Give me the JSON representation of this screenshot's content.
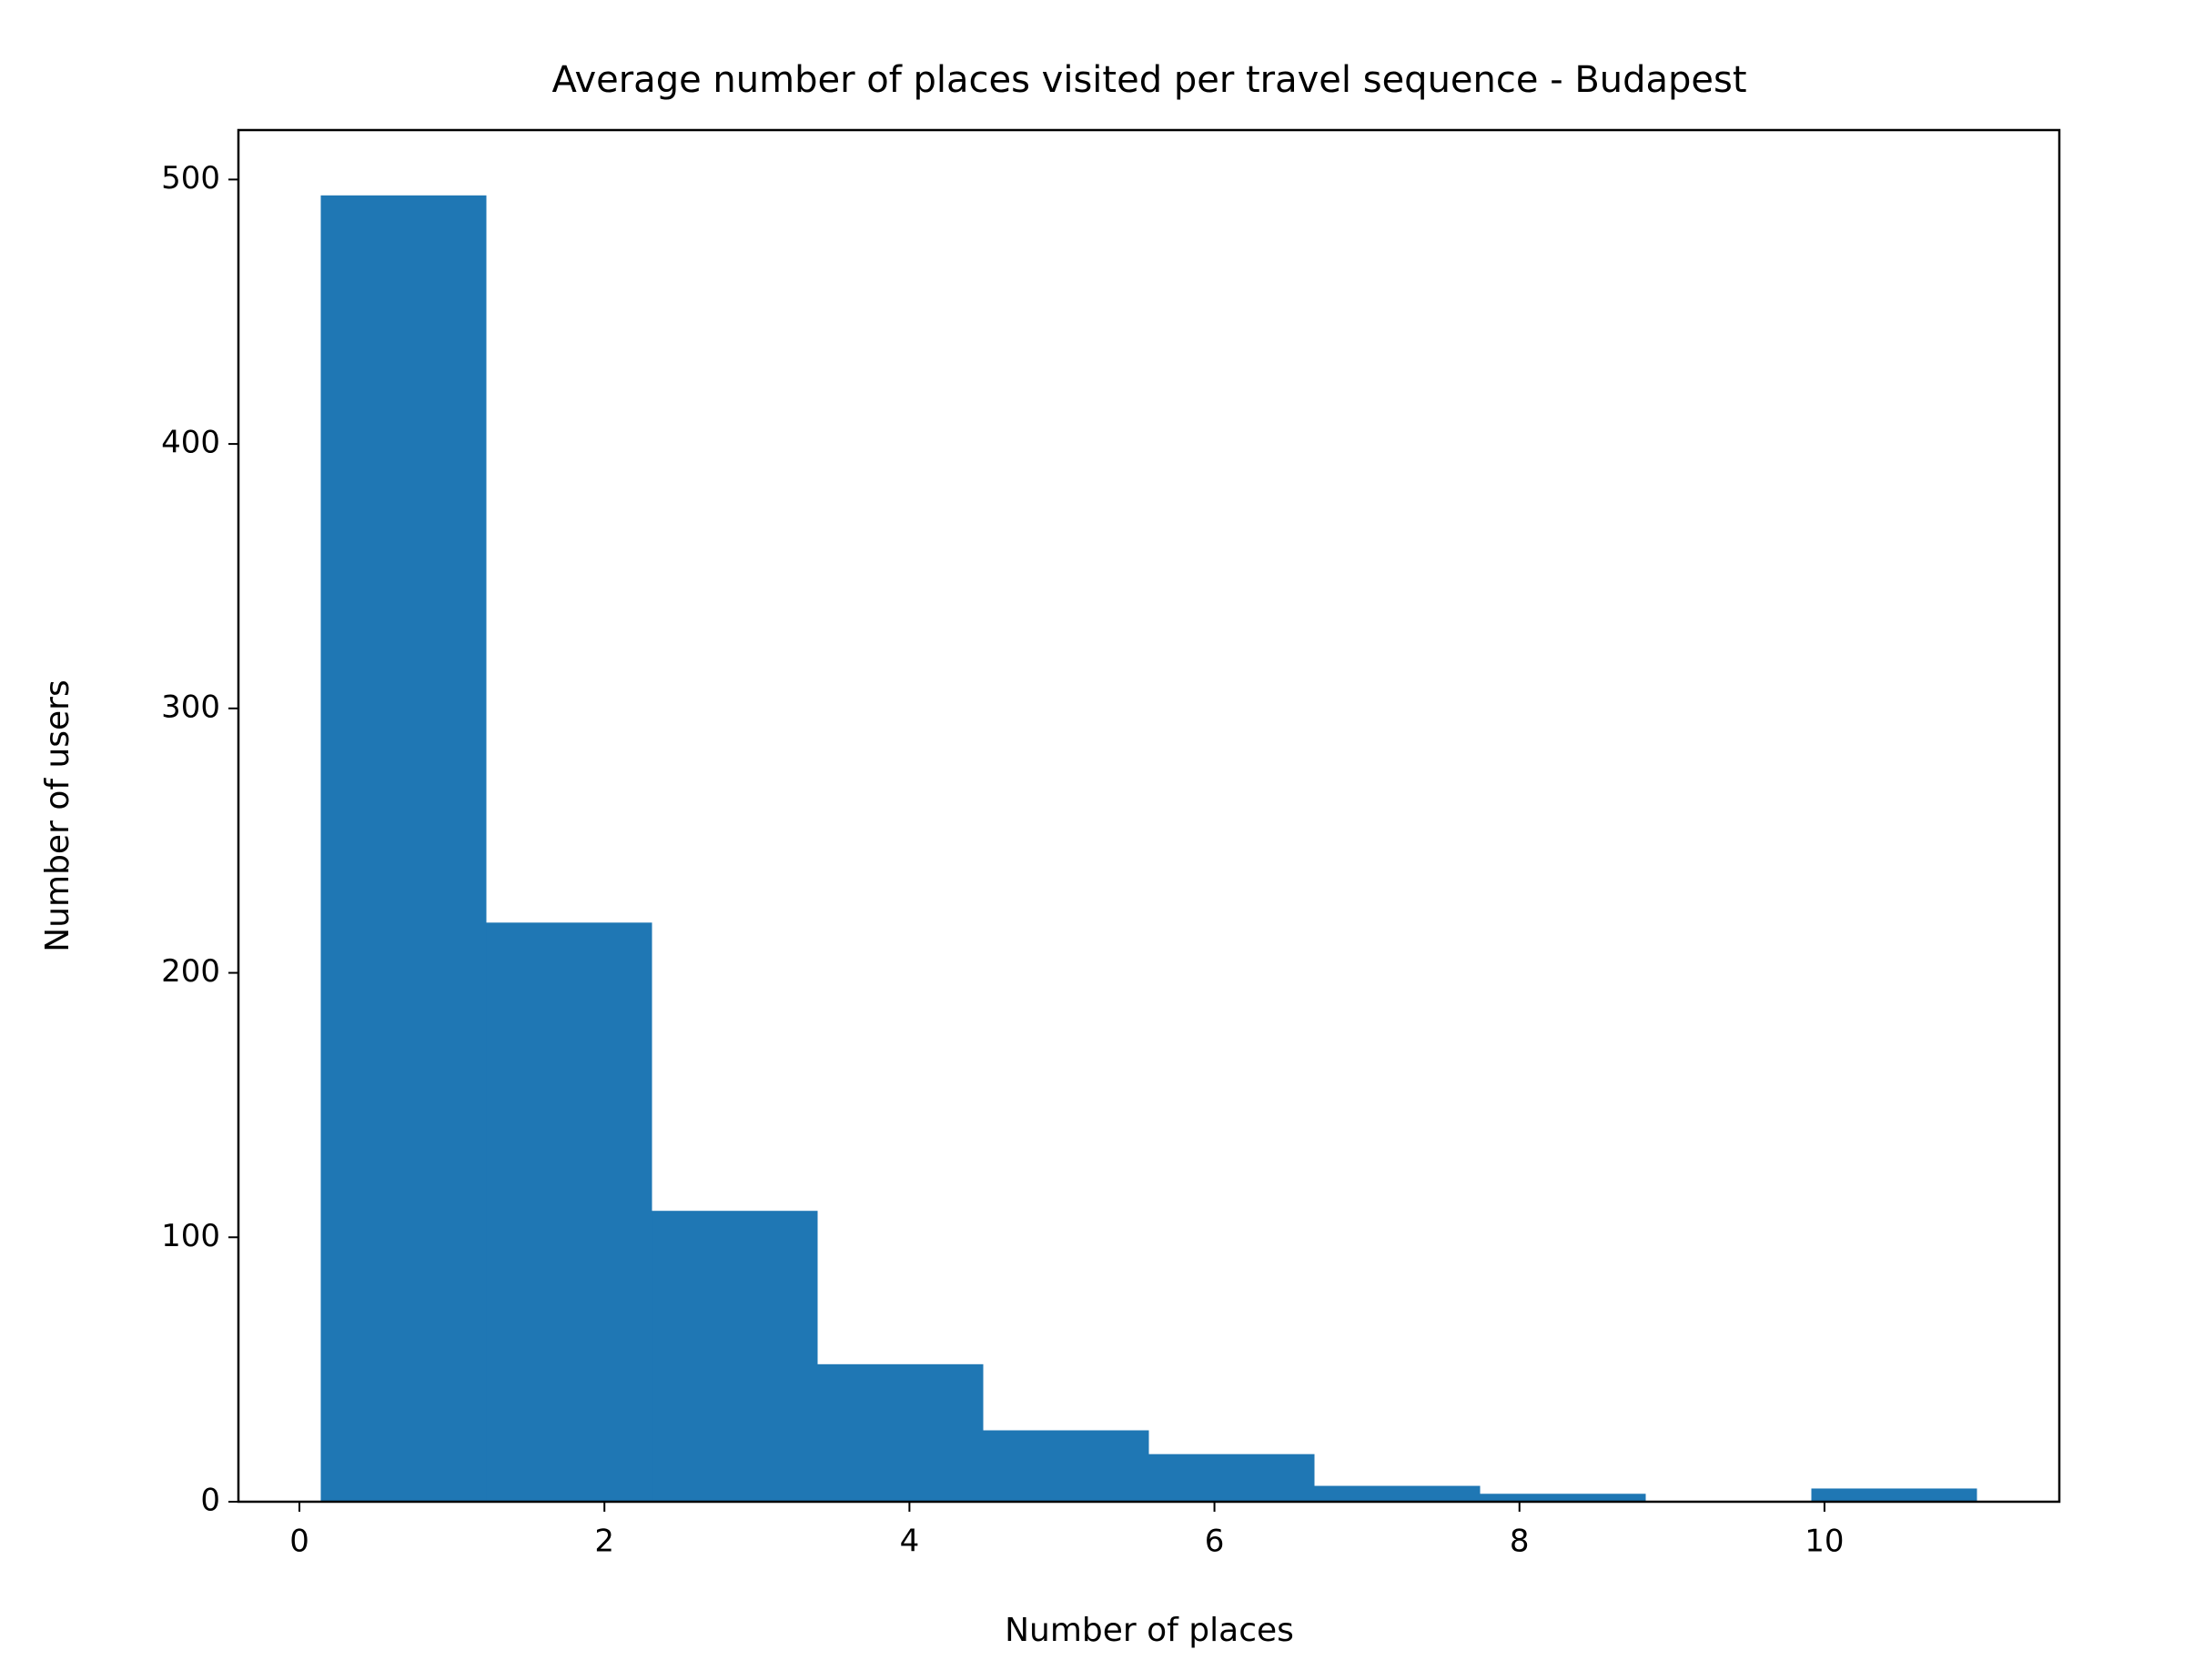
{
  "chart_data": {
    "type": "histogram",
    "title": "Average number of places visited per travel sequence - Budapest",
    "x_label": "Number of places",
    "y_label": "Number of users",
    "bins": [
      0.14,
      1.226,
      2.312,
      3.398,
      4.484,
      5.57,
      6.656,
      7.742,
      8.828,
      9.914,
      11.0
    ],
    "values": [
      494,
      219,
      110,
      52,
      27,
      18,
      6,
      3,
      0,
      5
    ],
    "color": "#1f77b4",
    "xlim": [
      -0.4,
      11.54
    ],
    "xticks": [
      0,
      2,
      4,
      6,
      8,
      10
    ],
    "ylim": [
      0,
      518.7
    ],
    "yticks": [
      0,
      100,
      200,
      300,
      400,
      500
    ],
    "grid": false
  }
}
